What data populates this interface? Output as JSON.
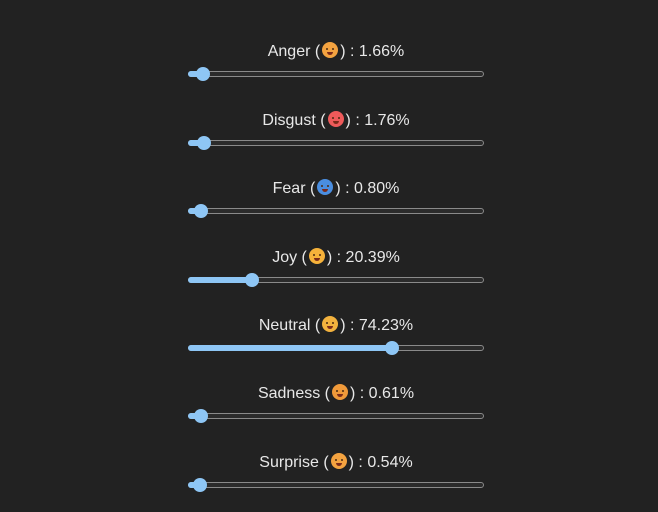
{
  "emotions": [
    {
      "name": "Anger",
      "emoji_icon": "steaming-face-icon",
      "value_text": "1.66%",
      "value": 1.66,
      "emoji_color": "#f4a340"
    },
    {
      "name": "Disgust",
      "emoji_icon": "vomiting-face-icon",
      "value_text": "1.76%",
      "value": 1.76,
      "emoji_color": "#ee5a5a"
    },
    {
      "name": "Fear",
      "emoji_icon": "screaming-face-icon",
      "value_text": "0.80%",
      "value": 0.8,
      "emoji_color": "#4a8ee0"
    },
    {
      "name": "Joy",
      "emoji_icon": "grinning-tongue-face-icon",
      "value_text": "20.39%",
      "value": 20.39,
      "emoji_color": "#f6b23a"
    },
    {
      "name": "Neutral",
      "emoji_icon": "neutral-face-icon",
      "value_text": "74.23%",
      "value": 74.23,
      "emoji_color": "#f3b23e"
    },
    {
      "name": "Sadness",
      "emoji_icon": "sad-face-icon",
      "value_text": "0.61%",
      "value": 0.61,
      "emoji_color": "#f09a3a"
    },
    {
      "name": "Surprise",
      "emoji_icon": "astonished-face-icon",
      "value_text": "0.54%",
      "value": 0.54,
      "emoji_color": "#f4a340"
    }
  ],
  "colors": {
    "background": "#222222",
    "accent": "#8ec6f5",
    "track_border": "#8a8a8a",
    "text": "#e8e8e8"
  }
}
